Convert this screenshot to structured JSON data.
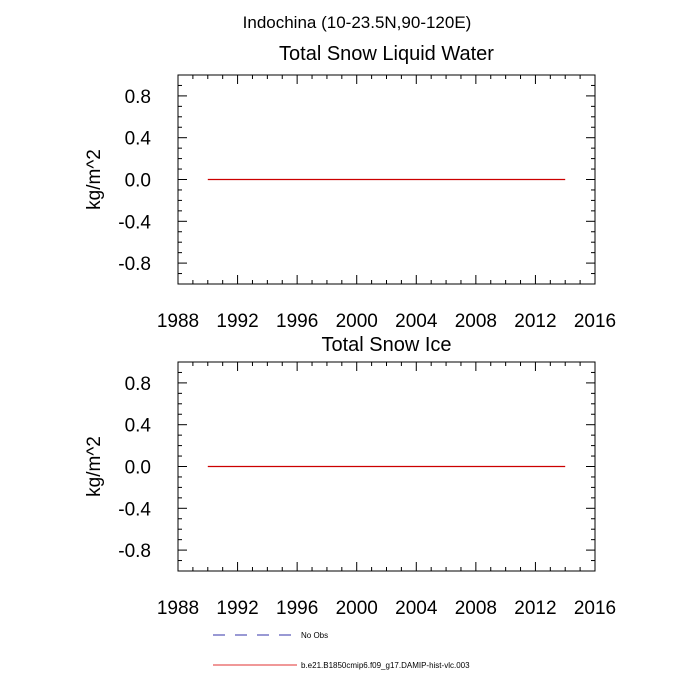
{
  "figure": {
    "title": "Indochina (10-23.5N,90-120E)"
  },
  "chart_data": [
    {
      "type": "line",
      "title": "Total Snow Liquid Water",
      "xlabel": "",
      "ylabel": "kg/m^2",
      "xlim": [
        1988,
        2016
      ],
      "ylim": [
        -1,
        1
      ],
      "x_ticks": [
        1988,
        1992,
        1996,
        2000,
        2004,
        2008,
        2012,
        2016
      ],
      "x_tick_labels": [
        "1988",
        "1992",
        "1996",
        "2000",
        "2004",
        "2008",
        "2012",
        "2016"
      ],
      "y_ticks": [
        0.8,
        0.4,
        0.0,
        -0.4,
        -0.8
      ],
      "y_tick_labels": [
        "0.8",
        "0.4",
        "0.0",
        "-0.4",
        "-0.8"
      ],
      "series": [
        {
          "name": "b.e21.B1850cmip6.f09_g17.DAMIP-hist-vlc.003",
          "color": "#cc0000",
          "x": [
            1990,
            2014
          ],
          "values": [
            0,
            0
          ]
        }
      ]
    },
    {
      "type": "line",
      "title": "Total Snow Ice",
      "xlabel": "",
      "ylabel": "kg/m^2",
      "xlim": [
        1988,
        2016
      ],
      "ylim": [
        -1,
        1
      ],
      "x_ticks": [
        1988,
        1992,
        1996,
        2000,
        2004,
        2008,
        2012,
        2016
      ],
      "x_tick_labels": [
        "1988",
        "1992",
        "1996",
        "2000",
        "2004",
        "2008",
        "2012",
        "2016"
      ],
      "y_ticks": [
        0.8,
        0.4,
        0.0,
        -0.4,
        -0.8
      ],
      "y_tick_labels": [
        "0.8",
        "0.4",
        "0.0",
        "-0.4",
        "-0.8"
      ],
      "series": [
        {
          "name": "b.e21.B1850cmip6.f09_g17.DAMIP-hist-vlc.003",
          "color": "#cc0000",
          "x": [
            1990,
            2014
          ],
          "values": [
            0,
            0
          ]
        }
      ]
    }
  ],
  "legend": {
    "entries": [
      {
        "label": "No Obs",
        "style": "dashed",
        "color": "#3333aa"
      },
      {
        "label": "b.e21.B1850cmip6.f09_g17.DAMIP-hist-vlc.003",
        "style": "solid",
        "color": "#e03030"
      }
    ]
  }
}
